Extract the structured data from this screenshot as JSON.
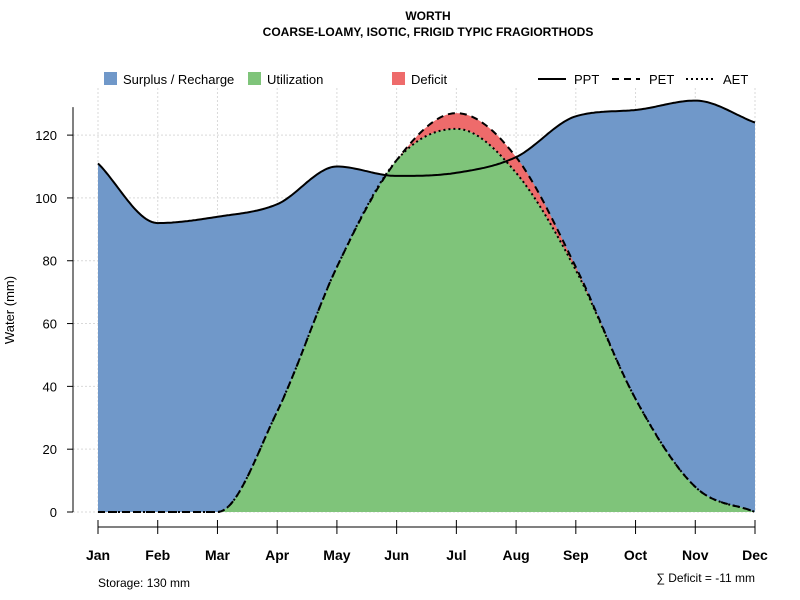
{
  "chart_data": {
    "type": "area",
    "title": "WORTH",
    "subtitle": "COARSE-LOAMY, ISOTIC, FRIGID TYPIC FRAGIORTHODS",
    "ylabel": "Water (mm)",
    "xlabel": "",
    "ylim": [
      0,
      135
    ],
    "yticks": [
      0,
      20,
      40,
      60,
      80,
      100,
      120
    ],
    "grid": true,
    "categories": [
      "Jan",
      "Feb",
      "Mar",
      "Apr",
      "May",
      "Jun",
      "Jul",
      "Aug",
      "Sep",
      "Oct",
      "Nov",
      "Dec"
    ],
    "legend": {
      "placement": "top",
      "areas": [
        {
          "name": "Surplus / Recharge",
          "color": "#7098c9"
        },
        {
          "name": "Utilization",
          "color": "#7fc47a"
        },
        {
          "name": "Deficit",
          "color": "#ee6b6b"
        }
      ],
      "lines": [
        {
          "name": "PPT",
          "style": "solid"
        },
        {
          "name": "PET",
          "style": "dashed"
        },
        {
          "name": "AET",
          "style": "dotted"
        }
      ]
    },
    "series": [
      {
        "name": "PPT",
        "values": [
          111,
          92,
          94,
          98,
          110,
          107,
          108,
          113,
          126,
          128,
          131,
          124
        ]
      },
      {
        "name": "PET",
        "values": [
          0,
          0,
          0,
          32,
          78,
          112,
          127,
          113,
          78,
          36,
          8,
          0
        ]
      },
      {
        "name": "AET",
        "values": [
          0,
          0,
          0,
          32,
          78,
          112,
          122,
          108,
          77,
          36,
          8,
          0
        ]
      }
    ],
    "footer": {
      "storage": "Storage: 130 mm",
      "deficit": "∑ Deficit = -11 mm"
    }
  }
}
